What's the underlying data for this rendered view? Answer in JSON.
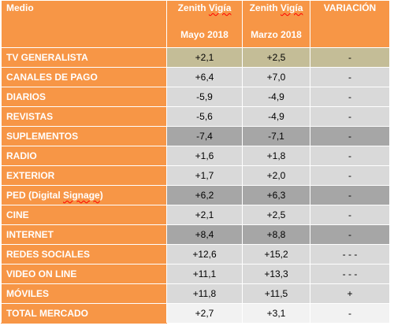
{
  "header": {
    "medio": "Medio",
    "col1_line1": "Zenith Vigía",
    "col1_line2": "Mayo 2018",
    "col2_line1": "Zenith Vigía",
    "col2_line2": "Marzo 2018",
    "variacion": "VARIACIÓN"
  },
  "rows": [
    {
      "medio": "TV GENERALISTA",
      "mayo": "+2,1",
      "marzo": "+2,5",
      "variacion": "-"
    },
    {
      "medio": "CANALES  DE PAGO",
      "mayo": "+6,4",
      "marzo": "+7,0",
      "variacion": "-"
    },
    {
      "medio": "DIARIOS",
      "mayo": "-5,9",
      "marzo": "-4,9",
      "variacion": "-"
    },
    {
      "medio": "REVISTAS",
      "mayo": "-5,6",
      "marzo": "-4,9",
      "variacion": "-"
    },
    {
      "medio": "SUPLEMENTOS",
      "mayo": "-7,4",
      "marzo": "-7,1",
      "variacion": "-"
    },
    {
      "medio": "RADIO",
      "mayo": "+1,6",
      "marzo": "+1,8",
      "variacion": "-"
    },
    {
      "medio": "EXTERIOR",
      "mayo": "+1,7",
      "marzo": "+2,0",
      "variacion": "-"
    },
    {
      "medio": "PED (Digital Signage)",
      "mayo": "+6,2",
      "marzo": "+6,3",
      "variacion": "-"
    },
    {
      "medio": "CINE",
      "mayo": "+2,1",
      "marzo": "+2,5",
      "variacion": "-"
    },
    {
      "medio": "INTERNET",
      "mayo": "+8,4",
      "marzo": "+8,8",
      "variacion": "-"
    },
    {
      "medio": "REDES SOCIALES",
      "mayo": "+12,6",
      "marzo": "+15,2",
      "variacion": "- -  -"
    },
    {
      "medio": "VIDEO ON LINE",
      "mayo": "+11,1",
      "marzo": "+13,3",
      "variacion": "-  -  -"
    },
    {
      "medio": "MÓVILES",
      "mayo": "+11,8",
      "marzo": "+11,5",
      "variacion": "+"
    },
    {
      "medio": "TOTAL MERCADO",
      "mayo": "+2,7",
      "marzo": "+3,1",
      "variacion": "-"
    }
  ],
  "colors": {
    "header_orange": "#f79646",
    "khaki": "#c4bd97",
    "light_gray": "#d9d9d9",
    "mid_gray": "#a6a6a6",
    "near_white": "#f2f2f2"
  }
}
